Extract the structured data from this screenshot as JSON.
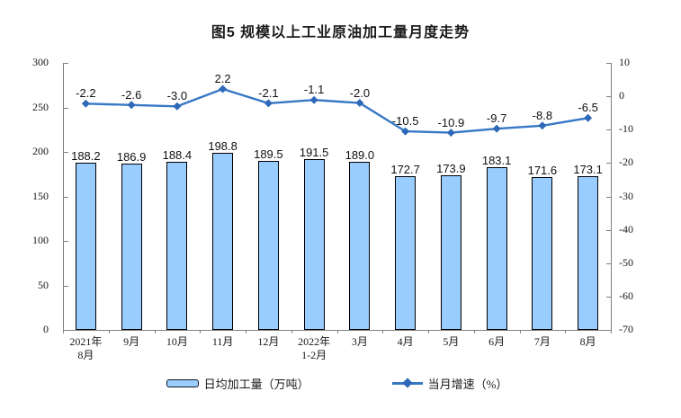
{
  "title": "图5 规模以上工业原油加工量月度走势",
  "legend": {
    "bar_label": "日均加工量（万吨）",
    "line_label": "当月增速（%）"
  },
  "chart_data": {
    "type": "bar-line-combo",
    "title": "图5 规模以上工业原油加工量月度走势",
    "categories": [
      "2021年\n8月",
      "9月",
      "10月",
      "11月",
      "12月",
      "2022年\n1-2月",
      "3月",
      "4月",
      "5月",
      "6月",
      "7月",
      "8月"
    ],
    "series": [
      {
        "name": "日均加工量（万吨）",
        "type": "bar",
        "axis": "left",
        "values": [
          188.2,
          186.9,
          188.4,
          198.8,
          189.5,
          191.5,
          189.0,
          172.7,
          173.9,
          183.1,
          171.6,
          173.1
        ],
        "fill": "#99CCFF",
        "border": "#000000"
      },
      {
        "name": "当月增速（%）",
        "type": "line",
        "axis": "right",
        "values": [
          -2.2,
          -2.6,
          -3.0,
          2.2,
          -2.1,
          -1.1,
          -2.0,
          -10.5,
          -10.9,
          -9.7,
          -8.8,
          -6.5
        ],
        "color": "#3778C5",
        "marker": "diamond",
        "marker_color": "#2E68B8"
      }
    ],
    "left_axis": {
      "min": 0,
      "max": 300,
      "ticks": [
        300,
        250,
        200,
        150,
        100,
        50,
        0
      ]
    },
    "right_axis": {
      "min": -70,
      "max": 10,
      "ticks": [
        10,
        0,
        -10,
        -20,
        -30,
        -40,
        -50,
        -60,
        -70
      ]
    },
    "grid": false,
    "legend_position": "bottom",
    "axis_color": "#808080",
    "text_color": "#1a1a1a"
  }
}
